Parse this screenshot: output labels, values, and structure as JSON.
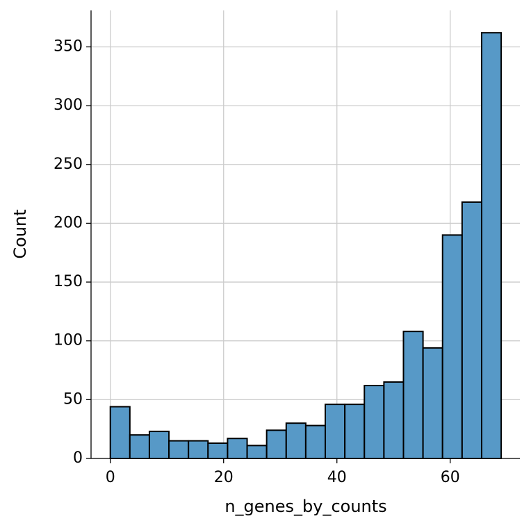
{
  "chart_data": {
    "type": "histogram",
    "xlabel": "n_genes_by_counts",
    "ylabel": "Count",
    "bins": [
      0,
      3.45,
      6.9,
      10.35,
      13.8,
      17.25,
      20.7,
      24.15,
      27.6,
      31.05,
      34.5,
      37.95,
      41.4,
      44.85,
      48.3,
      51.75,
      55.2,
      58.65,
      62.1,
      65.55,
      69
    ],
    "values": [
      44,
      20,
      23,
      15,
      15,
      13,
      17,
      11,
      24,
      30,
      28,
      46,
      46,
      62,
      65,
      108,
      94,
      190,
      218,
      362
    ],
    "color": "#5799c7",
    "edgecolor": "#000000",
    "xlim": [
      -3.4,
      72.3
    ],
    "xticks": [
      0,
      20,
      40,
      60
    ],
    "ylim": [
      0,
      381
    ],
    "yticks": [
      0,
      50,
      100,
      150,
      200,
      250,
      300,
      350
    ],
    "grid": true
  }
}
